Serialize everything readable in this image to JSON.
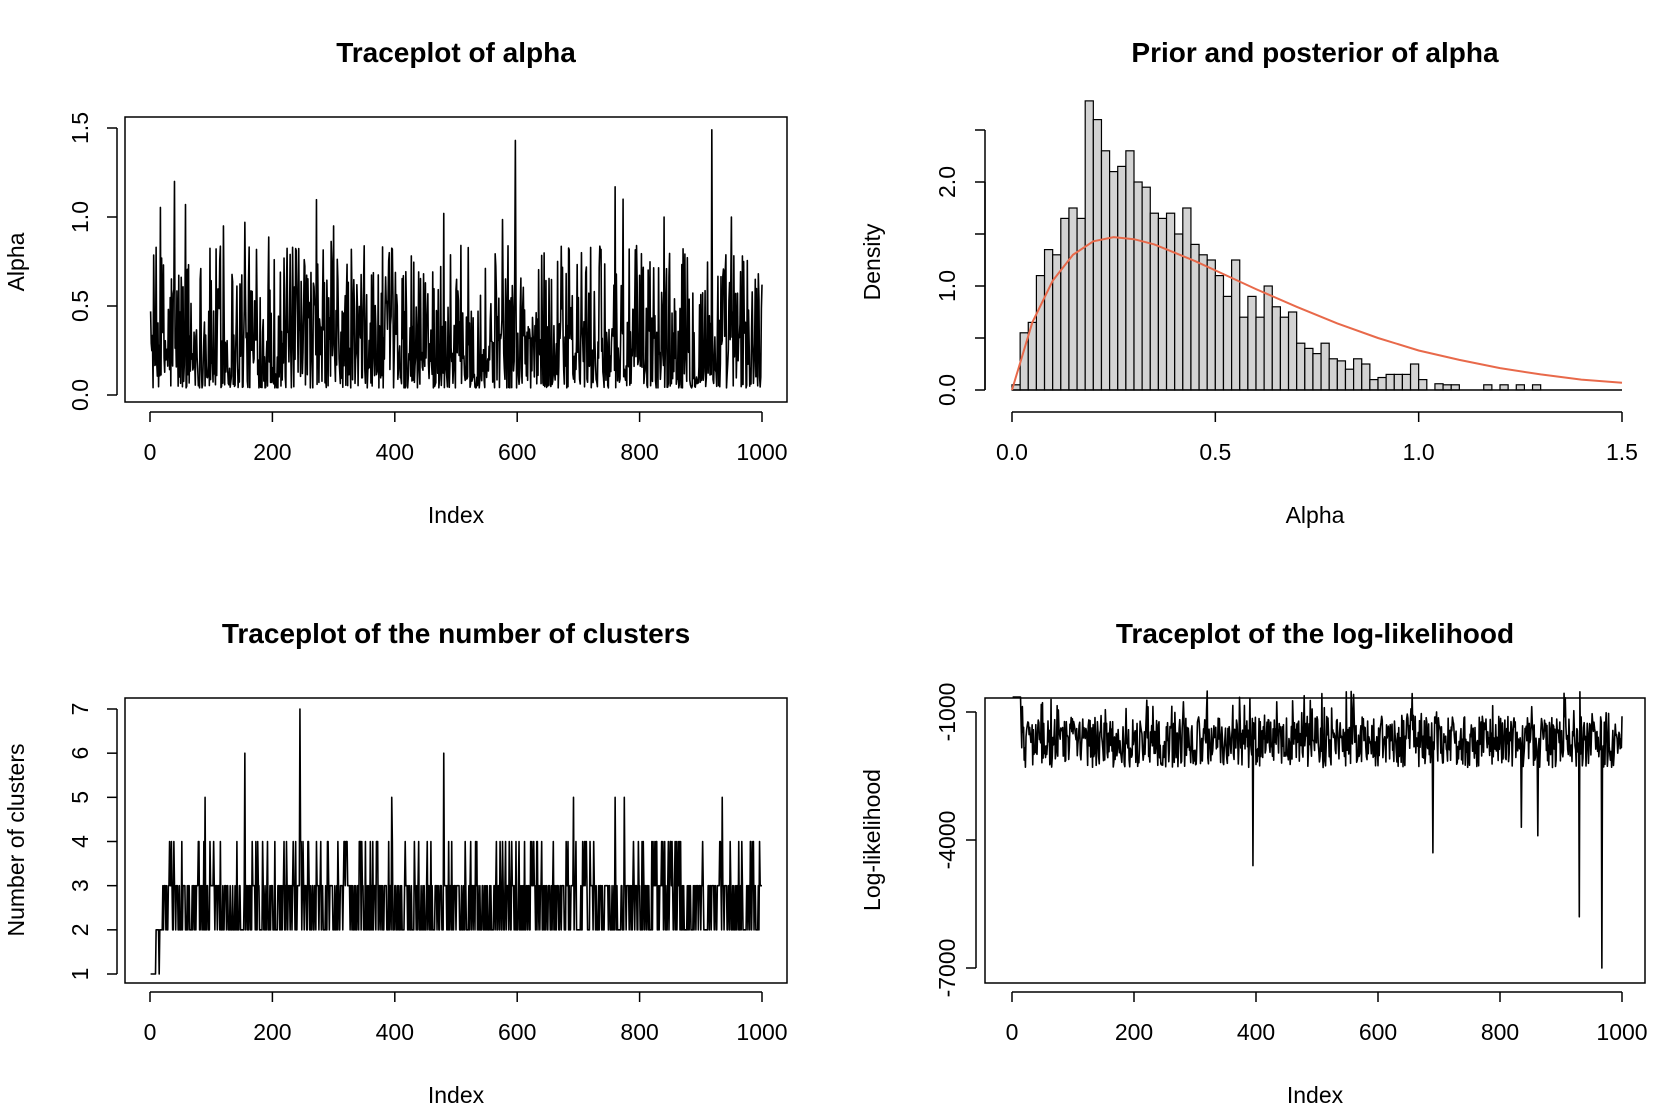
{
  "chart_data": [
    {
      "type": "line",
      "title": "Traceplot of alpha",
      "xlabel": "Index",
      "ylabel": "Alpha",
      "xlim": [
        0,
        1000
      ],
      "ylim": [
        0.0,
        1.5
      ],
      "xticks": [
        "0",
        "200",
        "400",
        "600",
        "800",
        "1000"
      ],
      "yticks": [
        "0.0",
        "0.5",
        "1.0",
        "1.5"
      ],
      "series": [
        {
          "x": [
            1,
            40,
            120,
            155,
            300,
            480,
            597,
            760,
            773,
            840,
            918,
            950,
            1000
          ],
          "values": [
            0.47,
            1.2,
            0.95,
            0.97,
            0.95,
            1.02,
            1.43,
            1.17,
            1.1,
            1.0,
            1.49,
            1.0,
            0.62
          ]
        }
      ]
    },
    {
      "type": "histogram",
      "title": "Prior and posterior of alpha",
      "xlabel": "Alpha",
      "ylabel": "Density",
      "xlim": [
        0.0,
        1.5
      ],
      "ylim": [
        0.0,
        2.5
      ],
      "xticks": [
        "0.0",
        "0.5",
        "1.0",
        "1.5"
      ],
      "yticks": [
        "0.0",
        "1.0",
        "2.0"
      ],
      "bin_width": 0.02,
      "bin_start": 0.0,
      "densities": [
        0.05,
        0.55,
        0.65,
        1.1,
        1.35,
        1.3,
        1.65,
        1.75,
        1.65,
        2.78,
        2.6,
        2.3,
        2.1,
        2.15,
        2.3,
        2.0,
        1.95,
        1.7,
        1.65,
        1.7,
        1.5,
        1.75,
        1.4,
        1.3,
        1.25,
        1.1,
        0.9,
        1.25,
        0.7,
        0.9,
        0.7,
        1.0,
        0.8,
        0.7,
        0.75,
        0.45,
        0.4,
        0.35,
        0.45,
        0.3,
        0.28,
        0.2,
        0.3,
        0.25,
        0.1,
        0.12,
        0.15,
        0.15,
        0.15,
        0.25,
        0.1,
        0,
        0.06,
        0.05,
        0.05,
        0,
        0,
        0,
        0.05,
        0,
        0.05,
        0,
        0.05,
        0,
        0.05,
        0,
        0,
        0,
        0,
        0,
        0,
        0,
        0,
        0,
        0,
        0,
        0,
        0,
        0,
        0,
        0,
        0,
        0,
        0,
        0,
        0,
        0,
        0,
        0,
        0,
        0,
        0,
        0,
        0,
        0,
        0,
        0,
        0,
        0,
        0,
        0,
        0,
        0,
        0.05,
        0,
        0.05,
        0,
        0,
        0,
        0,
        0,
        0,
        0,
        0,
        0,
        0,
        0,
        0,
        0,
        0,
        0,
        0,
        0,
        0.05,
        0,
        0,
        0,
        0,
        0,
        0,
        0,
        0,
        0,
        0,
        0,
        0,
        0,
        0,
        0,
        0,
        0,
        0,
        0,
        0,
        0,
        0,
        0,
        0,
        0,
        0,
        0,
        0,
        0,
        0,
        0,
        0,
        0,
        0,
        0,
        0
      ],
      "prior_curve": {
        "color": "#e8694a",
        "x": [
          0.0,
          0.05,
          0.1,
          0.15,
          0.2,
          0.25,
          0.3,
          0.35,
          0.4,
          0.45,
          0.5,
          0.6,
          0.7,
          0.8,
          0.9,
          1.0,
          1.1,
          1.2,
          1.3,
          1.4,
          1.5
        ],
        "values": [
          0.0,
          0.65,
          1.05,
          1.3,
          1.43,
          1.47,
          1.45,
          1.4,
          1.32,
          1.24,
          1.15,
          0.97,
          0.8,
          0.64,
          0.5,
          0.38,
          0.29,
          0.21,
          0.15,
          0.1,
          0.07
        ]
      }
    },
    {
      "type": "line",
      "title": "Traceplot of the number of clusters",
      "xlabel": "Index",
      "ylabel": "Number of clusters",
      "xlim": [
        0,
        1000
      ],
      "ylim": [
        1,
        7
      ],
      "xticks": [
        "0",
        "200",
        "400",
        "600",
        "800",
        "1000"
      ],
      "yticks": [
        "1",
        "2",
        "3",
        "4",
        "5",
        "6",
        "7"
      ],
      "series": [
        {
          "x": [
            1,
            8,
            10,
            15,
            20,
            90,
            155,
            245,
            395,
            480,
            692,
            760,
            775,
            935,
            1000
          ],
          "values": [
            1,
            1,
            2,
            1,
            2,
            5,
            6,
            7,
            5,
            6,
            5,
            5,
            5,
            5,
            3
          ]
        }
      ]
    },
    {
      "type": "line",
      "title": "Traceplot of the log-likelihood",
      "xlabel": "Index",
      "ylabel": "Log-likelihood",
      "xlim": [
        0,
        1000
      ],
      "ylim": [
        -7000,
        -1000
      ],
      "xticks": [
        "0",
        "200",
        "400",
        "600",
        "800",
        "1000"
      ],
      "yticks": [
        "-1000",
        "-4000",
        "-7000"
      ],
      "series": [
        {
          "x": [
            1,
            10,
            395,
            690,
            835,
            862,
            930,
            967,
            1000
          ],
          "values": [
            -650,
            -650,
            -4600,
            -4300,
            -3700,
            -3900,
            -5800,
            -7000,
            -1100
          ]
        }
      ]
    }
  ]
}
